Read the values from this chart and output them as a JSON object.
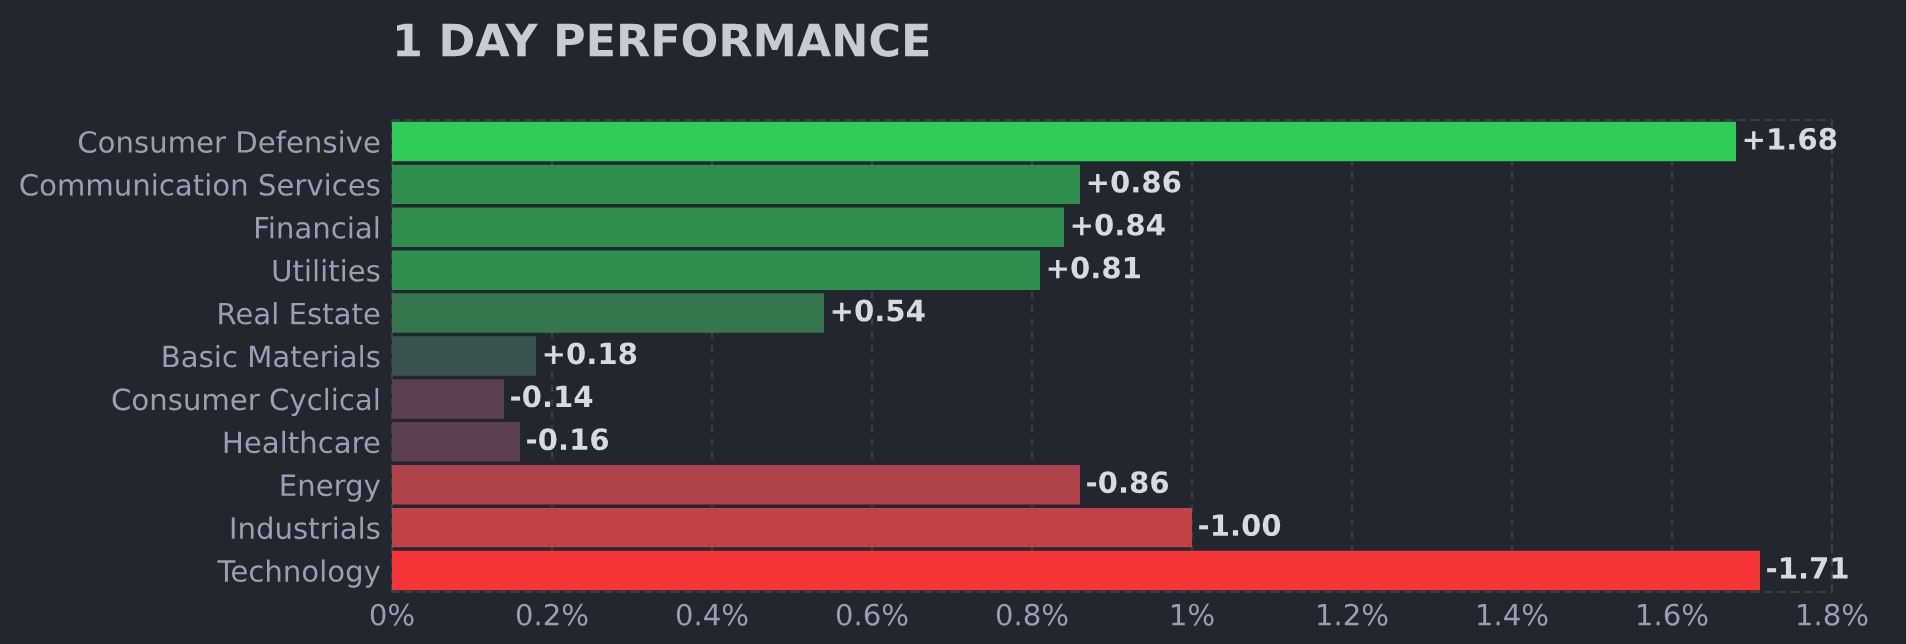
{
  "chart_data": {
    "type": "bar",
    "orientation": "horizontal",
    "title": "1 DAY PERFORMANCE",
    "categories": [
      "Consumer Defensive",
      "Communication Services",
      "Financial",
      "Utilities",
      "Real Estate",
      "Basic Materials",
      "Consumer Cyclical",
      "Healthcare",
      "Energy",
      "Industrials",
      "Technology"
    ],
    "values": [
      1.68,
      0.86,
      0.84,
      0.81,
      0.54,
      0.18,
      -0.14,
      -0.16,
      -0.86,
      -1.0,
      -1.71
    ],
    "base": [
      0,
      0,
      0,
      0,
      0,
      0,
      0.14,
      0.16,
      0.86,
      1.0,
      1.71
    ],
    "value_labels": [
      "+1.68",
      "+0.86",
      "+0.84",
      "+0.81",
      "+0.54",
      "+0.18",
      "-0.14",
      "-0.16",
      "-0.86",
      "-1.00",
      "-1.71"
    ],
    "colors": [
      "#30cc5a",
      "#2f8f4e",
      "#2f8f4e",
      "#2f8f4e",
      "#35764d",
      "#3a534e",
      "#5a4050",
      "#5a4050",
      "#b1444b",
      "#c14348",
      "#f63538"
    ],
    "xlim": [
      0,
      1.8
    ],
    "xticks": [
      {
        "value": 0,
        "label": "0%"
      },
      {
        "value": 0.2,
        "label": "0.2%"
      },
      {
        "value": 0.4,
        "label": "0.4%"
      },
      {
        "value": 0.6,
        "label": "0.6%"
      },
      {
        "value": 0.8,
        "label": "0.8%"
      },
      {
        "value": 1,
        "label": "1%"
      },
      {
        "value": 1.2,
        "label": "1.2%"
      },
      {
        "value": 1.4,
        "label": "1.4%"
      },
      {
        "value": 1.6,
        "label": "1.6%"
      },
      {
        "value": 1.8,
        "label": "1.8%"
      }
    ],
    "grid": "x"
  }
}
